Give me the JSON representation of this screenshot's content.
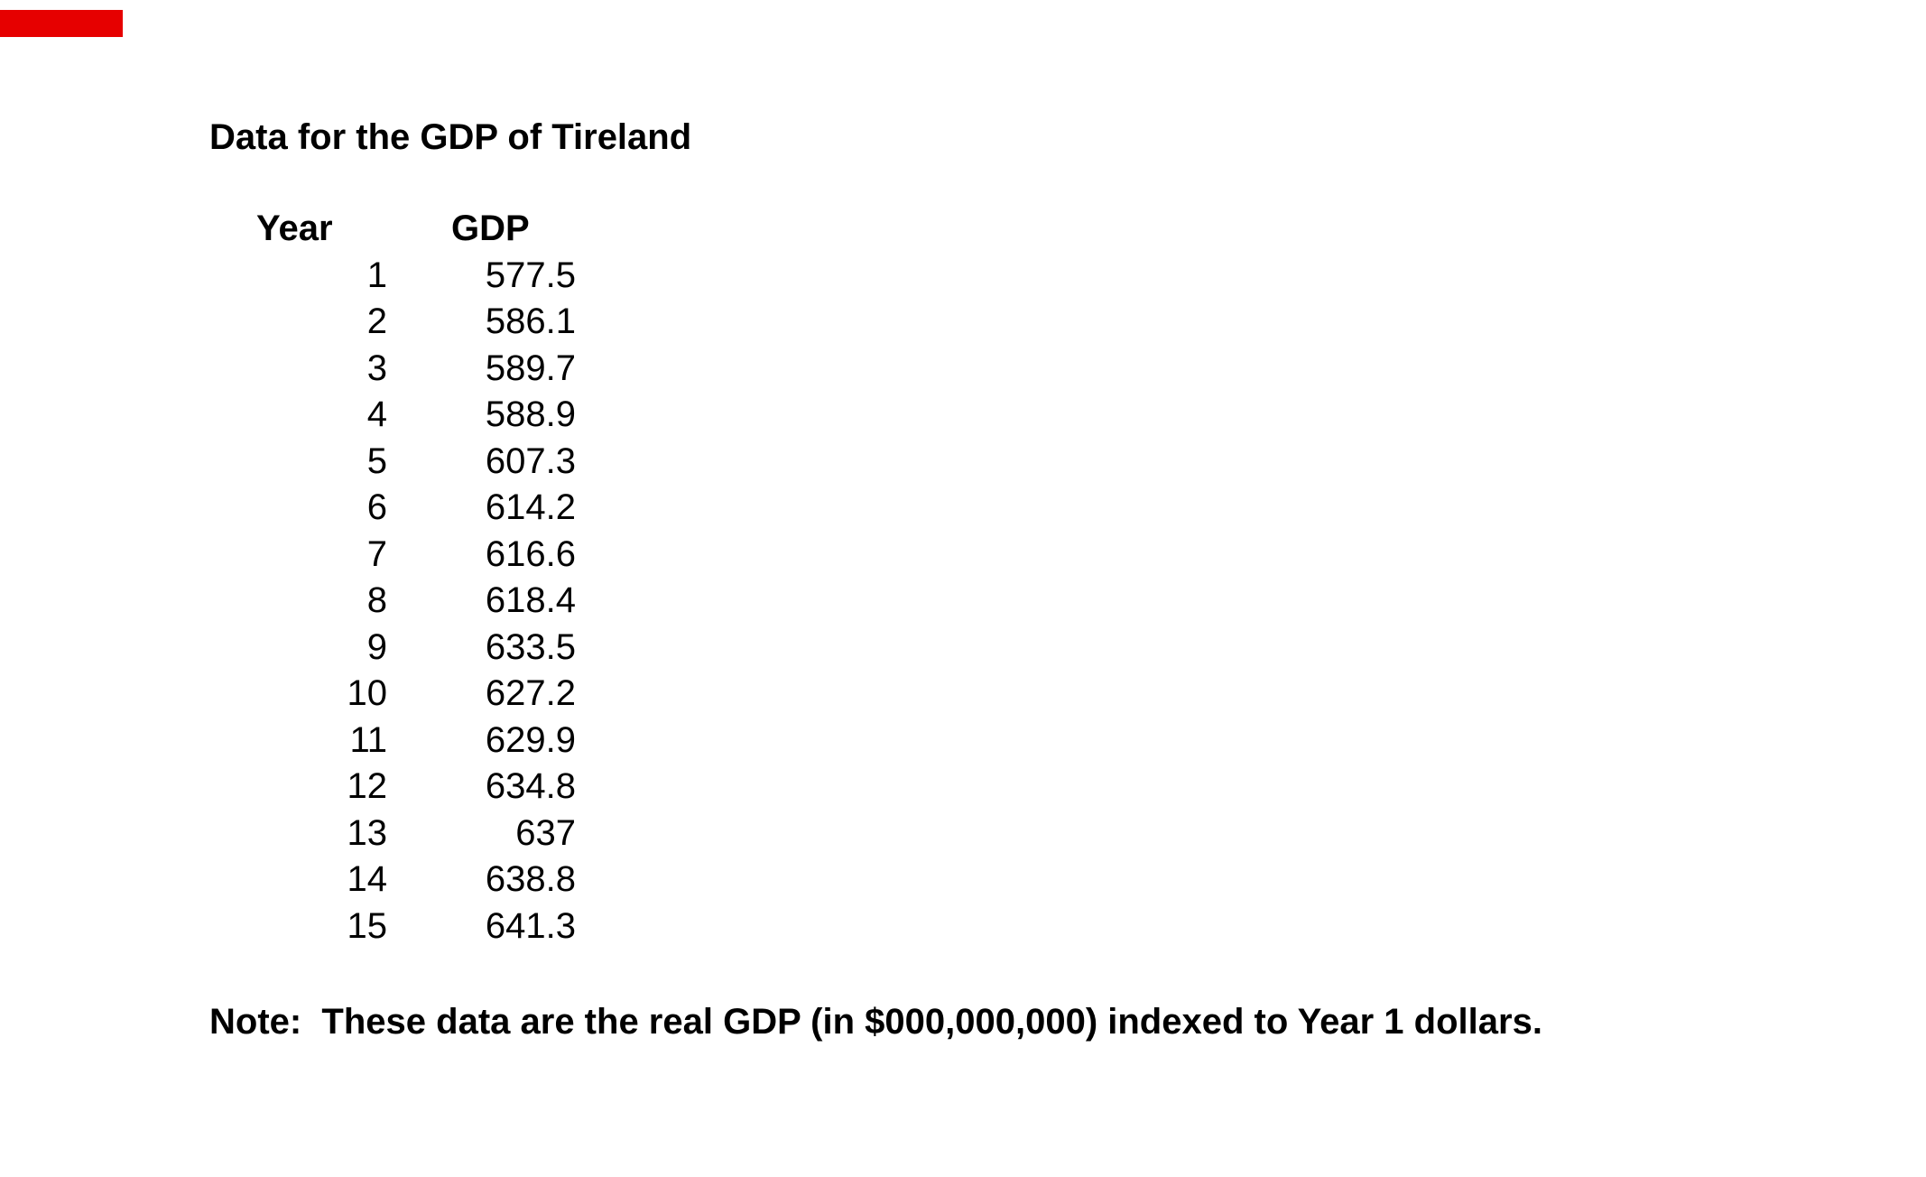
{
  "page": {
    "background_color": "#ffffff",
    "text_color": "#000000"
  },
  "progress_bar": {
    "color": "#e60000"
  },
  "title": "Data for the GDP of Tireland",
  "table": {
    "headers": [
      "Year",
      "GDP"
    ],
    "rows": [
      {
        "year": "1",
        "gdp": "577.5"
      },
      {
        "year": "2",
        "gdp": "586.1"
      },
      {
        "year": "3",
        "gdp": "589.7"
      },
      {
        "year": "4",
        "gdp": "588.9"
      },
      {
        "year": "5",
        "gdp": "607.3"
      },
      {
        "year": "6",
        "gdp": "614.2"
      },
      {
        "year": "7",
        "gdp": "616.6"
      },
      {
        "year": "8",
        "gdp": "618.4"
      },
      {
        "year": "9",
        "gdp": "633.5"
      },
      {
        "year": "10",
        "gdp": "627.2"
      },
      {
        "year": "11",
        "gdp": "629.9"
      },
      {
        "year": "12",
        "gdp": "634.8"
      },
      {
        "year": "13",
        "gdp": "637"
      },
      {
        "year": "14",
        "gdp": "638.8"
      },
      {
        "year": "15",
        "gdp": "641.3"
      }
    ]
  },
  "note": "Note:  These data are the real GDP (in $000,000,000) indexed to Year 1 dollars."
}
